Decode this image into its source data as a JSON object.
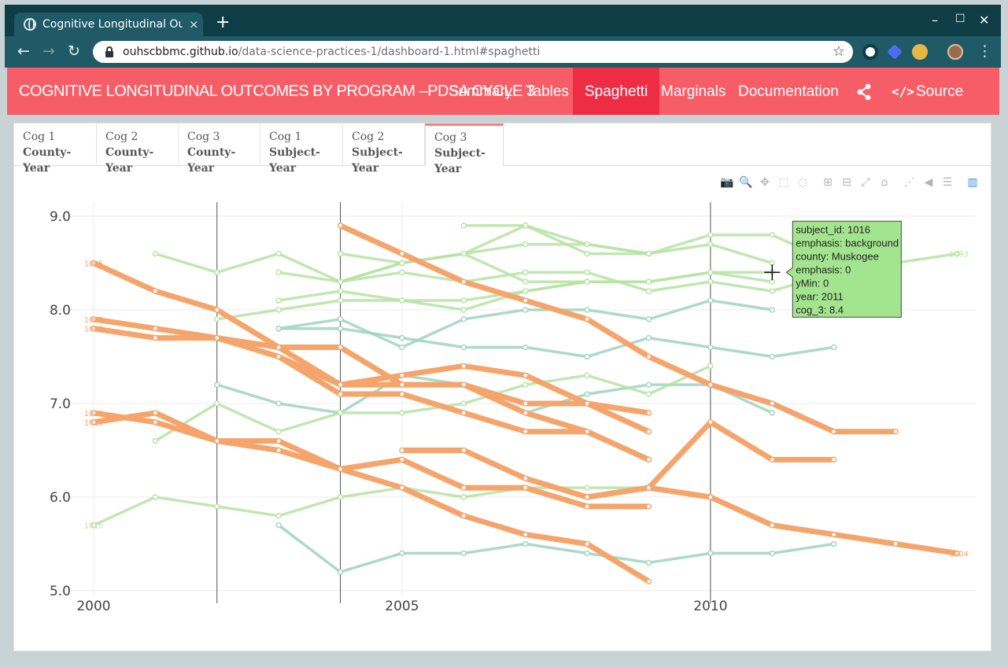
{
  "browser": {
    "tab_title": "Cognitive Longitudinal Outcomes",
    "tab_close": "×",
    "new_tab": "+",
    "url_host": "ouhscbbmc.github.io",
    "url_path": "/data-science-practices-1/dashboard-1.html#spaghetti",
    "win_min": "–",
    "win_max": "☐",
    "win_close": "✕",
    "back": "←",
    "forward": "→",
    "reload": "↻",
    "star": "☆",
    "menu": "⋮"
  },
  "navbar": {
    "brand": "COGNITIVE LONGITUDINAL OUTCOMES BY PROGRAM –PDSA CYCLE 3",
    "items": [
      {
        "label": "Summary",
        "active": false
      },
      {
        "label": "Tables",
        "active": false
      },
      {
        "label": "Spaghetti",
        "active": true
      },
      {
        "label": "Marginals",
        "active": false
      },
      {
        "label": "Documentation",
        "active": false
      }
    ],
    "source_code": "Source Code",
    "source_code_glyph": "</>",
    "accent_color": "#f75d67",
    "active_color": "#ee2d45"
  },
  "subtabs": [
    {
      "line1": "Cog 1",
      "line2": "County-Year",
      "active": false
    },
    {
      "line1": "Cog 2",
      "line2": "County-Year",
      "active": false
    },
    {
      "line1": "Cog 3",
      "line2": "County-Year",
      "active": false
    },
    {
      "line1": "Cog 1",
      "line2": "Subject-Year",
      "active": false
    },
    {
      "line1": "Cog 2",
      "line2": "Subject-Year",
      "active": false
    },
    {
      "line1": "Cog 3",
      "line2": "Subject-Year",
      "active": true
    }
  ],
  "modebar": [
    {
      "name": "camera-icon",
      "glyph": "📷"
    },
    {
      "name": "zoom-icon",
      "glyph": "🔍"
    },
    {
      "name": "pan-icon",
      "glyph": "✥"
    },
    {
      "name": "box-select-icon",
      "glyph": "⬚"
    },
    {
      "name": "lasso-icon",
      "glyph": "◌"
    },
    {
      "name": "zoom-in-icon",
      "glyph": "⊞"
    },
    {
      "name": "zoom-out-icon",
      "glyph": "⊟"
    },
    {
      "name": "autoscale-icon",
      "glyph": "⤢"
    },
    {
      "name": "reset-axes-icon",
      "glyph": "⌂"
    },
    {
      "name": "spike-lines-icon",
      "glyph": "⋰"
    },
    {
      "name": "hover-closest-icon",
      "glyph": "◀"
    },
    {
      "name": "hover-compare-icon",
      "glyph": "☰"
    },
    {
      "name": "plotly-logo-icon",
      "glyph": "▥"
    }
  ],
  "chart_data": {
    "type": "line",
    "title": "",
    "xlabel": "",
    "ylabel": "",
    "xlim": [
      1999.35,
      2014.3
    ],
    "ylim": [
      4.95,
      9.15
    ],
    "x_ticks": [
      2000,
      2005,
      2010
    ],
    "y_ticks": [
      5.0,
      6.0,
      7.0,
      8.0,
      9.0
    ],
    "y_tick_labels": [
      "5.0",
      "6.0",
      "7.0",
      "8.0",
      "9.0"
    ],
    "x_tick_labels": [
      "2000",
      "2005",
      "2010"
    ],
    "grid": true,
    "vlines": [
      2002,
      2004,
      2010
    ],
    "colors": {
      "orange": "#f5a46b",
      "green": "#b6e3a3",
      "teal": "#9ed3c1"
    },
    "series": [
      {
        "name": "1003",
        "color": "orange",
        "label": "1003",
        "x": [
          2000,
          2001,
          2002,
          2003,
          2004,
          2005,
          2006,
          2007,
          2008,
          2009
        ],
        "y": [
          7.9,
          7.8,
          7.7,
          7.6,
          7.6,
          7.2,
          7.2,
          7.0,
          7.0,
          6.9
        ]
      },
      {
        "name": "1005",
        "color": "orange",
        "label": "1005",
        "x": [
          2000,
          2001,
          2002,
          2003,
          2004,
          2005,
          2006,
          2007,
          2008,
          2009
        ],
        "y": [
          8.5,
          8.2,
          8.0,
          7.6,
          7.2,
          7.2,
          7.2,
          6.9,
          6.7,
          6.4
        ]
      },
      {
        "name": "1008",
        "color": "orange",
        "label": "1008",
        "x": [
          2000,
          2001,
          2002,
          2003,
          2004,
          2005,
          2006,
          2007,
          2008,
          2009
        ],
        "y": [
          7.8,
          7.7,
          7.7,
          7.5,
          7.2,
          7.3,
          7.4,
          7.3,
          7.0,
          6.7
        ]
      },
      {
        "name": "1012",
        "color": "orange",
        "label": "1012",
        "x": [
          2000,
          2001,
          2002,
          2003,
          2004,
          2005,
          2006,
          2007,
          2008,
          2009
        ],
        "y": [
          6.9,
          6.8,
          6.6,
          6.6,
          6.3,
          6.4,
          6.1,
          6.1,
          5.9,
          5.9
        ]
      },
      {
        "name": "1010",
        "color": "orange",
        "label": "1010",
        "x": [
          2000,
          2001,
          2002,
          2003,
          2004,
          2005,
          2006,
          2007,
          2008,
          2009
        ],
        "y": [
          6.8,
          6.9,
          6.6,
          6.5,
          6.3,
          6.1,
          5.8,
          5.6,
          5.5,
          5.1
        ]
      },
      {
        "name": "1018",
        "color": "orange",
        "label": "",
        "x": [
          2004,
          2005,
          2006,
          2007,
          2008,
          2009,
          2010,
          2011,
          2012,
          2013
        ],
        "y": [
          8.9,
          8.6,
          8.3,
          8.1,
          7.9,
          7.5,
          7.2,
          7.0,
          6.7,
          6.7
        ]
      },
      {
        "name": "1019",
        "color": "orange",
        "label": "",
        "x": [
          2003,
          2004,
          2005,
          2006,
          2007,
          2008,
          2009
        ],
        "y": [
          7.5,
          7.1,
          7.1,
          6.9,
          6.7,
          6.7,
          6.4
        ]
      },
      {
        "name": "1020",
        "color": "orange",
        "label": "",
        "x": [
          2005,
          2006,
          2007,
          2008,
          2009,
          2010,
          2011,
          2012
        ],
        "y": [
          6.5,
          6.5,
          6.2,
          6.0,
          6.1,
          6.8,
          6.4,
          6.4
        ]
      },
      {
        "name": "1004",
        "color": "orange",
        "label": "1004",
        "x": [
          2008,
          2009,
          2010,
          2011,
          2012,
          2013,
          2014
        ],
        "y": [
          6.0,
          6.1,
          6.0,
          5.7,
          5.6,
          5.5,
          5.4
        ]
      },
      {
        "name": "1015",
        "color": "green",
        "label": "1015",
        "x": [
          2000,
          2001,
          2002,
          2003,
          2004,
          2005,
          2006,
          2007,
          2008,
          2009
        ],
        "y": [
          5.7,
          6.0,
          5.9,
          5.8,
          6.0,
          6.1,
          6.0,
          6.1,
          6.1,
          6.1
        ]
      },
      {
        "name": "1093",
        "color": "green",
        "label": "1093",
        "x": [
          2004,
          2005,
          2006,
          2007,
          2008,
          2009,
          2010,
          2011,
          2012,
          2013,
          2014
        ],
        "y": [
          8.3,
          8.5,
          8.6,
          8.7,
          8.7,
          8.6,
          8.8,
          8.8,
          8.5,
          8.5,
          8.6
        ]
      },
      {
        "name": "g3",
        "color": "green",
        "label": "",
        "x": [
          2001,
          2002,
          2003,
          2004,
          2005,
          2006,
          2007,
          2008,
          2009,
          2010,
          2011
        ],
        "y": [
          8.6,
          8.4,
          8.6,
          8.3,
          8.5,
          8.6,
          8.3,
          8.3,
          8.3,
          8.4,
          8.4
        ]
      },
      {
        "name": "g4",
        "color": "green",
        "label": "",
        "x": [
          2003,
          2004,
          2005,
          2006,
          2007,
          2008,
          2009,
          2010,
          2011,
          2012,
          2013
        ],
        "y": [
          8.4,
          8.3,
          8.4,
          8.3,
          8.4,
          8.4,
          8.2,
          8.3,
          8.2,
          8.4,
          8.4
        ]
      },
      {
        "name": "g5",
        "color": "green",
        "label": "",
        "x": [
          2002,
          2003,
          2004,
          2005,
          2006,
          2007,
          2008,
          2009,
          2010,
          2011
        ],
        "y": [
          7.9,
          8.0,
          8.1,
          8.1,
          8.0,
          8.2,
          8.3,
          8.3,
          8.4,
          8.3
        ]
      },
      {
        "name": "g6",
        "color": "green",
        "label": "",
        "x": [
          2003,
          2004,
          2005,
          2006,
          2007,
          2008
        ],
        "y": [
          8.1,
          8.2,
          8.1,
          8.1,
          8.2,
          8.3
        ]
      },
      {
        "name": "g7",
        "color": "green",
        "label": "",
        "x": [
          2004,
          2005,
          2006,
          2007,
          2008,
          2009,
          2010,
          2011
        ],
        "y": [
          8.6,
          8.5,
          8.6,
          8.9,
          8.6,
          8.6,
          8.7,
          8.5
        ]
      },
      {
        "name": "g8",
        "color": "green",
        "label": "",
        "x": [
          2006,
          2007,
          2008,
          2009
        ],
        "y": [
          8.9,
          8.9,
          8.7,
          8.6
        ]
      },
      {
        "name": "g9",
        "color": "green",
        "label": "",
        "x": [
          2001,
          2002,
          2003,
          2004,
          2005,
          2006,
          2007,
          2008,
          2009,
          2010
        ],
        "y": [
          6.6,
          7.0,
          6.7,
          6.9,
          6.9,
          7.0,
          7.2,
          7.3,
          7.1,
          7.4
        ]
      },
      {
        "name": "t1",
        "color": "teal",
        "label": "",
        "x": [
          2003,
          2004,
          2005,
          2006,
          2007,
          2008,
          2009,
          2010,
          2011,
          2012
        ],
        "y": [
          7.8,
          7.8,
          7.7,
          7.6,
          7.6,
          7.5,
          7.7,
          7.6,
          7.5,
          7.6
        ]
      },
      {
        "name": "t2",
        "color": "teal",
        "label": "",
        "x": [
          2003,
          2004,
          2005,
          2006,
          2007,
          2008,
          2009,
          2010,
          2011
        ],
        "y": [
          7.8,
          7.9,
          7.6,
          7.9,
          8.0,
          8.0,
          7.9,
          8.1,
          8.0
        ]
      },
      {
        "name": "t3",
        "color": "teal",
        "label": "",
        "x": [
          2002,
          2003,
          2004,
          2005,
          2006,
          2007,
          2008,
          2009,
          2010,
          2011
        ],
        "y": [
          7.2,
          7.0,
          6.9,
          7.3,
          7.2,
          6.9,
          7.1,
          7.2,
          7.2,
          6.9
        ]
      },
      {
        "name": "t4",
        "color": "teal",
        "label": "",
        "x": [
          2003,
          2004,
          2005,
          2006,
          2007,
          2008,
          2009,
          2010,
          2011,
          2012
        ],
        "y": [
          5.7,
          5.2,
          5.4,
          5.4,
          5.5,
          5.4,
          5.3,
          5.4,
          5.4,
          5.5
        ]
      }
    ],
    "hover": {
      "x": 2011,
      "y": 8.4,
      "lines": [
        "subject_id: 1016",
        "emphasis: background",
        "county: Muskogee",
        "emphasis: 0",
        "yMin: 0",
        "year: 2011",
        "cog_3: 8.4"
      ]
    }
  }
}
